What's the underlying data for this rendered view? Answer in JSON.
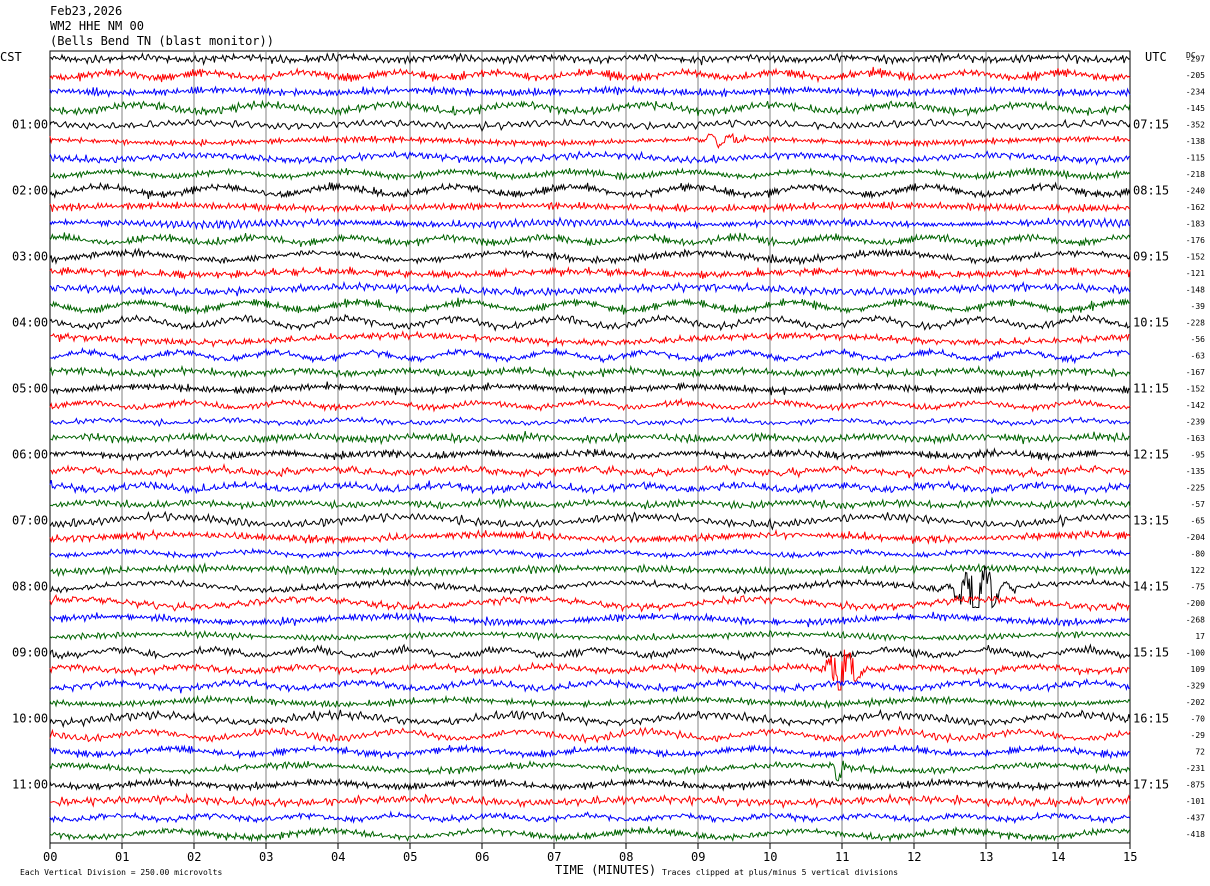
{
  "header": {
    "date": "Feb23,2026",
    "station": "WM2 HHE NM 00",
    "location": "(Bells Bend TN (blast monitor))"
  },
  "axes": {
    "left_zone": "CST",
    "right_zone": "UTC",
    "dc_label": "DC",
    "xlabel": "TIME (MINUTES)"
  },
  "footer": {
    "scale_note": "Each Vertical Division =  250.00 microvolts",
    "clip_note": "Traces clipped at plus/minus 5 vertical divisions"
  },
  "chart_data": {
    "type": "line",
    "subtype": "helicorder",
    "x": {
      "min": 0,
      "max": 15,
      "ticks": [
        "00",
        "01",
        "02",
        "03",
        "04",
        "05",
        "06",
        "07",
        "08",
        "09",
        "10",
        "11",
        "12",
        "13",
        "14",
        "15"
      ]
    },
    "trace_colors": [
      "#000000",
      "#ff0000",
      "#0000ff",
      "#006400"
    ],
    "minutes_per_trace": 15,
    "trace_count": 48,
    "left_time_labels": [
      "01:00",
      "02:00",
      "03:00",
      "04:00",
      "05:00",
      "06:00",
      "07:00",
      "08:00",
      "09:00",
      "10:00",
      "11:00"
    ],
    "right_time_labels": [
      "07:15",
      "08:15",
      "09:15",
      "10:15",
      "11:15",
      "12:15",
      "13:15",
      "14:15",
      "15:15",
      "16:15",
      "17:15"
    ],
    "dc_offsets": [
      "-297",
      "-205",
      "-234",
      "-145",
      "-352",
      "-138",
      "-115",
      "-218",
      "-240",
      "-162",
      "-183",
      "-176",
      "-152",
      "-121",
      "-148",
      "-39",
      "-228",
      "-56",
      "-63",
      "-167",
      "-152",
      "-142",
      "-239",
      "-163",
      "-95",
      "-135",
      "-225",
      "-57",
      "-65",
      "-204",
      "-80",
      "122",
      "-75",
      "-200",
      "-268",
      "17",
      "-100",
      "109",
      "-329",
      "-202",
      "-70",
      "-29",
      "72",
      "-231",
      "-875",
      "-101",
      "-437",
      "-418"
    ],
    "events": [
      {
        "trace": 32,
        "start_min": 12.2,
        "end_min": 13.4,
        "peak_min": 12.9,
        "amplitude": "clipped"
      },
      {
        "trace": 37,
        "start_min": 10.7,
        "end_min": 11.5,
        "peak_min": 11.0,
        "amplitude": "clipped"
      },
      {
        "trace": 43,
        "start_min": 10.8,
        "end_min": 11.1,
        "peak_min": 10.95,
        "amplitude": "large"
      },
      {
        "trace": 5,
        "start_min": 8.9,
        "end_min": 9.9,
        "peak_min": 9.3,
        "amplitude": "moderate"
      }
    ]
  }
}
